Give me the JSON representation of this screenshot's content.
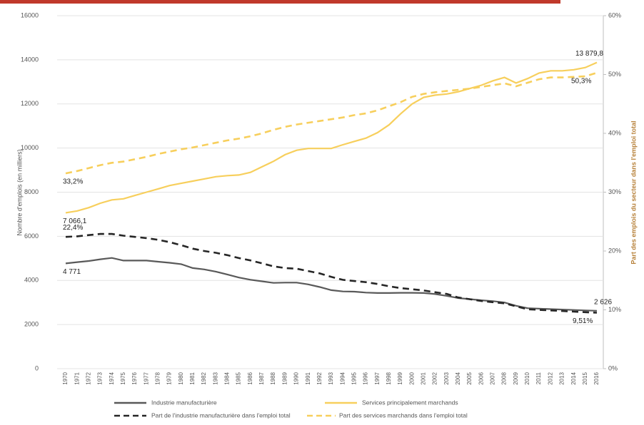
{
  "chart_data": {
    "type": "line",
    "y_label": "Nombre d'emplois (en milliers)",
    "y2_label": "Part des emplois du secteur dans l'emploi total",
    "categories": [
      "1970",
      "1971",
      "1972",
      "1973",
      "1974",
      "1975",
      "1976",
      "1977",
      "1978",
      "1979",
      "1980",
      "1981",
      "1982",
      "1983",
      "1984",
      "1985",
      "1986",
      "1987",
      "1988",
      "1989",
      "1990",
      "1991",
      "1992",
      "1993",
      "1994",
      "1995",
      "1996",
      "1997",
      "1998",
      "1999",
      "2000",
      "2001",
      "2002",
      "2003",
      "2004",
      "2005",
      "2006",
      "2007",
      "2008",
      "2009",
      "2010",
      "2011",
      "2012",
      "2013",
      "2014",
      "2015",
      "2016"
    ],
    "ylim": [
      0,
      16000
    ],
    "yticks": [
      0,
      2000,
      4000,
      6000,
      8000,
      10000,
      12000,
      14000,
      16000
    ],
    "y2lim": [
      0,
      60
    ],
    "y2ticks": [
      {
        "value": 0,
        "label": "0%"
      },
      {
        "value": 10,
        "label": "10%"
      },
      {
        "value": 20,
        "label": "20%"
      },
      {
        "value": 30,
        "label": "30%"
      },
      {
        "value": 40,
        "label": "40%"
      },
      {
        "value": 50,
        "label": "50%"
      },
      {
        "value": 60,
        "label": "60%"
      }
    ],
    "grid": true,
    "series": [
      {
        "name": "Industrie manufacturière",
        "color": "#595959",
        "dash": false,
        "values": [
          4771,
          4830,
          4880,
          4960,
          5020,
          4900,
          4900,
          4900,
          4850,
          4800,
          4740,
          4560,
          4500,
          4400,
          4270,
          4130,
          4030,
          3960,
          3890,
          3900,
          3900,
          3820,
          3700,
          3560,
          3500,
          3490,
          3450,
          3430,
          3430,
          3440,
          3440,
          3430,
          3380,
          3300,
          3200,
          3150,
          3100,
          3060,
          3000,
          2850,
          2740,
          2720,
          2700,
          2680,
          2660,
          2640,
          2626
        ],
        "value_labels": [
          "4 771",
          null,
          null,
          null,
          null,
          null,
          null,
          null,
          null,
          null,
          null,
          null,
          null,
          null,
          null,
          null,
          null,
          null,
          null,
          null,
          null,
          null,
          null,
          null,
          null,
          null,
          null,
          null,
          null,
          null,
          null,
          null,
          null,
          null,
          null,
          null,
          null,
          null,
          null,
          null,
          null,
          null,
          null,
          null,
          null,
          null,
          "2 626"
        ]
      },
      {
        "name": "Services principalement marchands",
        "color": "#f7cf5c",
        "dash": false,
        "values": [
          7066.1,
          7150,
          7300,
          7500,
          7650,
          7700,
          7850,
          8000,
          8150,
          8300,
          8400,
          8500,
          8600,
          8700,
          8750,
          8780,
          8900,
          9150,
          9400,
          9700,
          9900,
          9980,
          9980,
          9980,
          10150,
          10300,
          10450,
          10700,
          11050,
          11550,
          12000,
          12300,
          12400,
          12450,
          12550,
          12700,
          12850,
          13050,
          13200,
          12950,
          13150,
          13400,
          13500,
          13500,
          13550,
          13650,
          13879.8
        ],
        "value_labels": [
          "7 066,1",
          null,
          null,
          null,
          null,
          null,
          null,
          null,
          null,
          null,
          null,
          null,
          null,
          null,
          null,
          null,
          null,
          null,
          null,
          null,
          null,
          null,
          null,
          null,
          null,
          null,
          null,
          null,
          null,
          null,
          null,
          null,
          null,
          null,
          null,
          null,
          null,
          null,
          null,
          null,
          null,
          null,
          null,
          null,
          null,
          null,
          "13 879,8"
        ]
      },
      {
        "name": "Part de l'industrie manufacturière dans l'emploi total",
        "color": "#262626",
        "dash": true,
        "axis": "y2",
        "values": [
          22.4,
          22.5,
          22.7,
          22.9,
          22.9,
          22.6,
          22.4,
          22.2,
          21.9,
          21.5,
          21.0,
          20.4,
          20.0,
          19.7,
          19.3,
          18.8,
          18.4,
          17.9,
          17.4,
          17.1,
          17.0,
          16.6,
          16.2,
          15.6,
          15.1,
          14.9,
          14.7,
          14.4,
          14.0,
          13.7,
          13.5,
          13.3,
          13.0,
          12.7,
          12.1,
          11.8,
          11.5,
          11.3,
          11.1,
          10.6,
          10.1,
          10.0,
          9.9,
          9.8,
          9.7,
          9.6,
          9.51
        ],
        "value_labels": [
          "22,4%",
          null,
          null,
          null,
          null,
          null,
          null,
          null,
          null,
          null,
          null,
          null,
          null,
          null,
          null,
          null,
          null,
          null,
          null,
          null,
          null,
          null,
          null,
          null,
          null,
          null,
          null,
          null,
          null,
          null,
          null,
          null,
          null,
          null,
          null,
          null,
          null,
          null,
          null,
          null,
          null,
          null,
          null,
          null,
          null,
          null,
          "9,51%"
        ]
      },
      {
        "name": "Part des services marchands dans l'emploi total",
        "color": "#f7cf5c",
        "dash": true,
        "axis": "y2",
        "values": [
          33.2,
          33.6,
          34.1,
          34.6,
          35.0,
          35.2,
          35.6,
          36.0,
          36.5,
          36.9,
          37.3,
          37.6,
          38.0,
          38.4,
          38.8,
          39.1,
          39.5,
          40.0,
          40.6,
          41.1,
          41.5,
          41.8,
          42.1,
          42.4,
          42.7,
          43.1,
          43.4,
          43.9,
          44.6,
          45.3,
          46.2,
          46.7,
          47.0,
          47.2,
          47.4,
          47.6,
          47.9,
          48.2,
          48.5,
          48.0,
          48.6,
          49.2,
          49.5,
          49.5,
          49.6,
          49.7,
          50.3
        ],
        "value_labels": [
          "33,2%",
          null,
          null,
          null,
          null,
          null,
          null,
          null,
          null,
          null,
          null,
          null,
          null,
          null,
          null,
          null,
          null,
          null,
          null,
          null,
          null,
          null,
          null,
          null,
          null,
          null,
          null,
          null,
          null,
          null,
          null,
          null,
          null,
          null,
          null,
          null,
          null,
          null,
          null,
          null,
          null,
          null,
          null,
          null,
          null,
          null,
          "50,3%"
        ]
      }
    ]
  }
}
